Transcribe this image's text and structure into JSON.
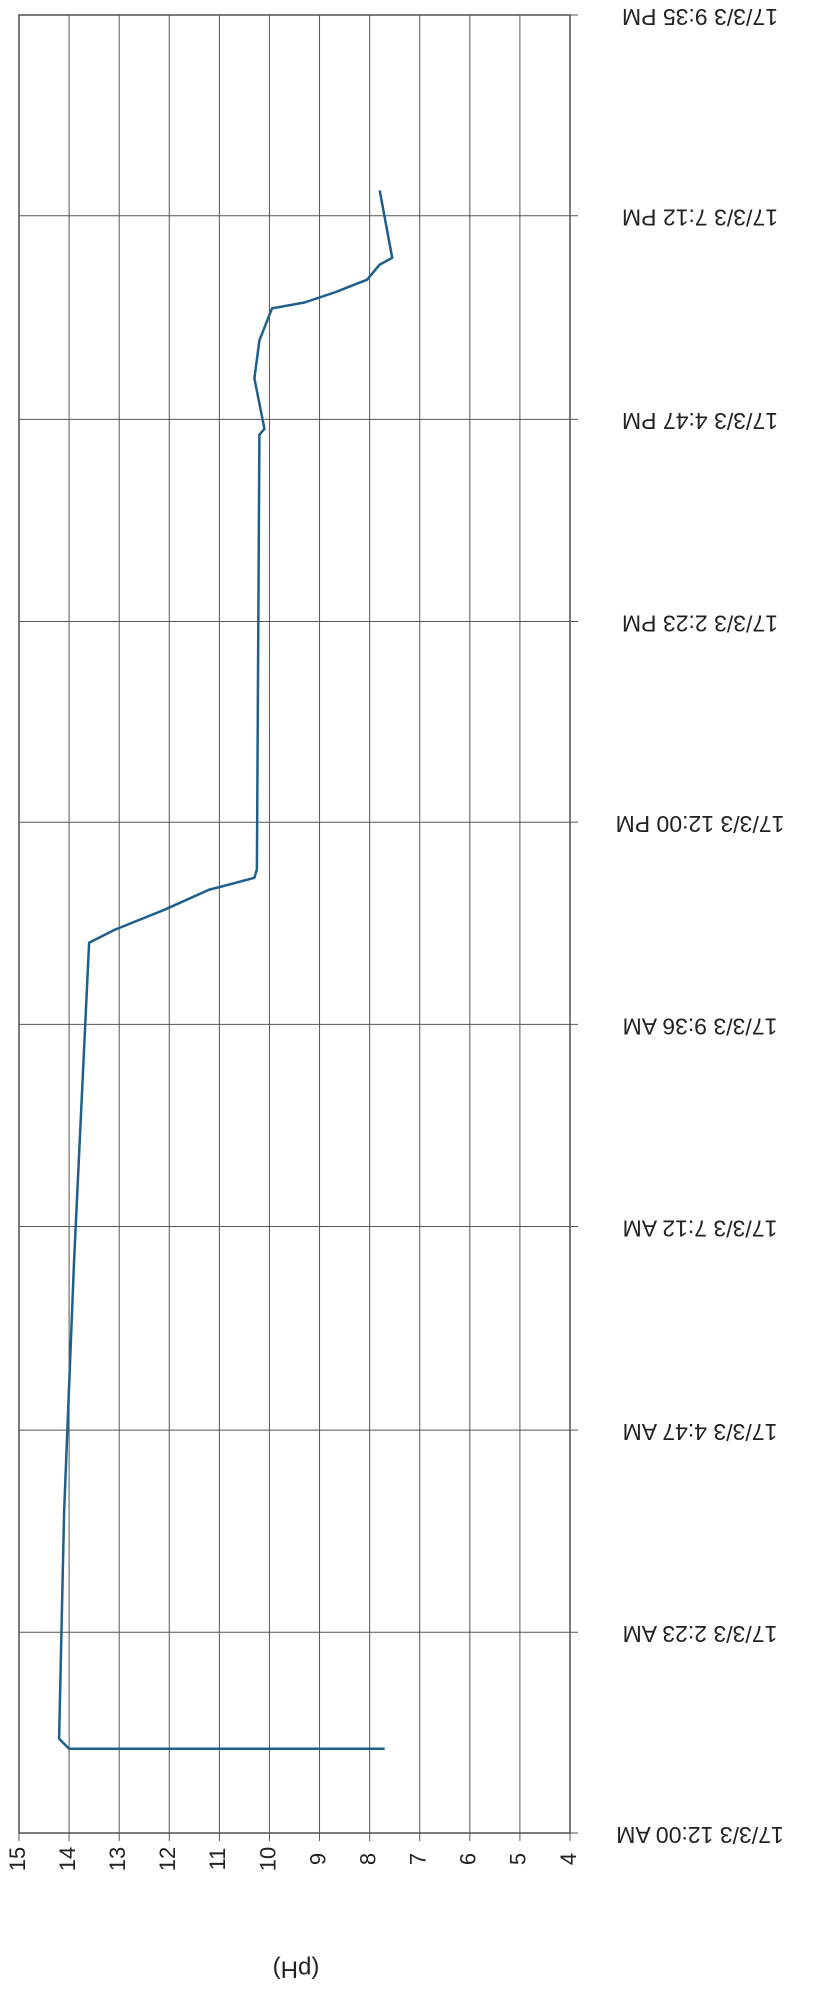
{
  "chart_data": {
    "type": "line",
    "ylabel": "(pH)",
    "x": [
      1.0,
      1.0,
      1.12,
      3.81,
      6.8,
      10.57,
      10.72,
      10.96,
      11.2,
      11.23,
      11.34,
      11.44,
      16.6,
      16.67,
      17.27,
      17.72,
      18.1,
      18.17,
      18.29,
      18.44,
      18.62,
      18.7,
      19.5
    ],
    "series": [
      {
        "name": "pH",
        "color": "#1f5f8b",
        "values": [
          7.7,
          14.0,
          14.2,
          14.1,
          13.9,
          13.6,
          13.1,
          12.1,
          11.2,
          11.0,
          10.3,
          10.25,
          10.2,
          10.1,
          10.3,
          10.2,
          9.95,
          9.3,
          8.7,
          8.05,
          7.8,
          7.55,
          7.8
        ]
      }
    ],
    "xlim": [
      0,
      21.583
    ],
    "xticks": [
      {
        "value": 0,
        "label": "17/3/3 12:00 AM"
      },
      {
        "value": 2.383,
        "label": "17/3/3 2:23 AM"
      },
      {
        "value": 4.783,
        "label": "17/3/3 4:47 AM"
      },
      {
        "value": 7.2,
        "label": "17/3/3 7:12 AM"
      },
      {
        "value": 9.6,
        "label": "17/3/3 9:36 AM"
      },
      {
        "value": 12,
        "label": "17/3/3 12:00 PM"
      },
      {
        "value": 14.383,
        "label": "17/3/3 2:23 PM"
      },
      {
        "value": 16.783,
        "label": "17/3/3 4:47 PM"
      },
      {
        "value": 19.2,
        "label": "17/3/3 7:12 PM"
      },
      {
        "value": 21.583,
        "label": "17/3/3 9:35 PM"
      }
    ],
    "ylim": [
      15,
      4
    ],
    "yticks": [
      15,
      14,
      13,
      12,
      11,
      10,
      9,
      8,
      7,
      6,
      5,
      4
    ],
    "grid": true
  }
}
